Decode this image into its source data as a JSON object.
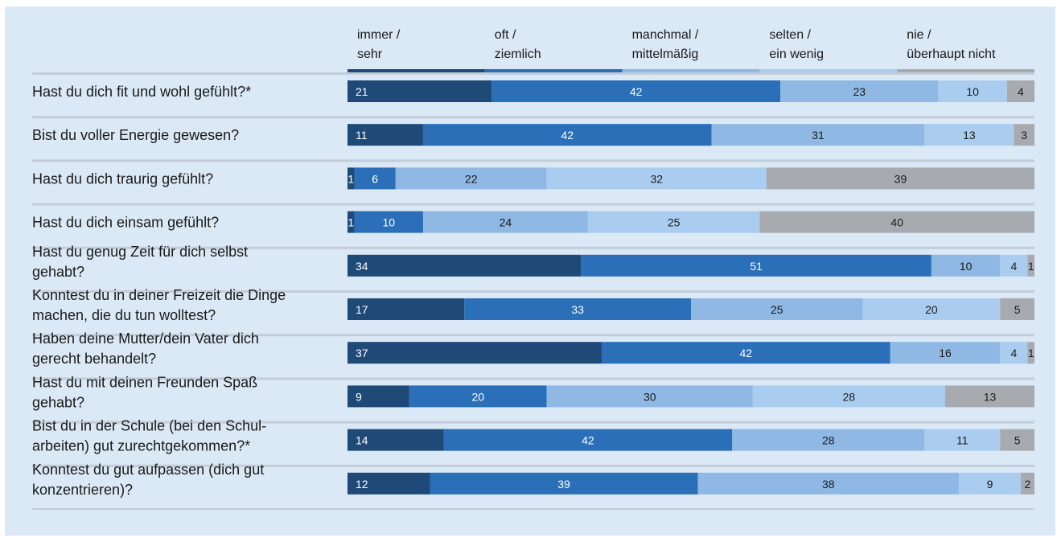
{
  "chart_data": {
    "type": "bar",
    "stacked": true,
    "orientation": "horizontal",
    "unit": "percent",
    "xlim": [
      0,
      100
    ],
    "legend_position": "top",
    "grid": false,
    "legend": [
      {
        "line1": "immer /",
        "line2": "sehr",
        "color": "#1f4a78"
      },
      {
        "line1": "oft /",
        "line2": "ziemlich",
        "color": "#2a6fb8"
      },
      {
        "line1": "manchmal /",
        "line2": "mittelmäßig",
        "color": "#8fb9e4"
      },
      {
        "line1": "selten /",
        "line2": "ein wenig",
        "color": "#aacdef"
      },
      {
        "line1": "nie /",
        "line2": "überhaupt nicht",
        "color": "#a7abb0"
      }
    ],
    "questions": [
      {
        "lines": [
          "Hast du dich fit und wohl gefühlt?*"
        ],
        "values": [
          21,
          42,
          23,
          10,
          4
        ]
      },
      {
        "lines": [
          "Bist du voller Energie gewesen?"
        ],
        "values": [
          11,
          42,
          31,
          13,
          3
        ]
      },
      {
        "lines": [
          "Hast du dich traurig gefühlt?"
        ],
        "values": [
          1,
          6,
          22,
          32,
          39
        ]
      },
      {
        "lines": [
          "Hast du dich einsam gefühlt?"
        ],
        "values": [
          1,
          10,
          24,
          25,
          40
        ]
      },
      {
        "lines": [
          "Hast du genug Zeit für dich selbst",
          "gehabt?"
        ],
        "values": [
          34,
          51,
          10,
          4,
          1
        ]
      },
      {
        "lines": [
          "Konntest du in deiner Freizeit die Dinge",
          "machen, die du tun wolltest?"
        ],
        "values": [
          17,
          33,
          25,
          20,
          5
        ]
      },
      {
        "lines": [
          "Haben deine Mutter/dein Vater dich",
          "gerecht behandelt?"
        ],
        "values": [
          37,
          42,
          16,
          4,
          1
        ]
      },
      {
        "lines": [
          "Hast du mit deinen Freunden Spaß",
          "gehabt?"
        ],
        "values": [
          9,
          20,
          30,
          28,
          13
        ]
      },
      {
        "lines": [
          "Bist du in der Schule (bei den Schul-",
          "arbeiten) gut zurechtgekommen?*"
        ],
        "values": [
          14,
          42,
          28,
          11,
          5
        ]
      },
      {
        "lines": [
          "Konntest du gut aufpassen (dich gut",
          "konzentrieren)?"
        ],
        "values": [
          12,
          39,
          38,
          9,
          2
        ]
      }
    ]
  }
}
